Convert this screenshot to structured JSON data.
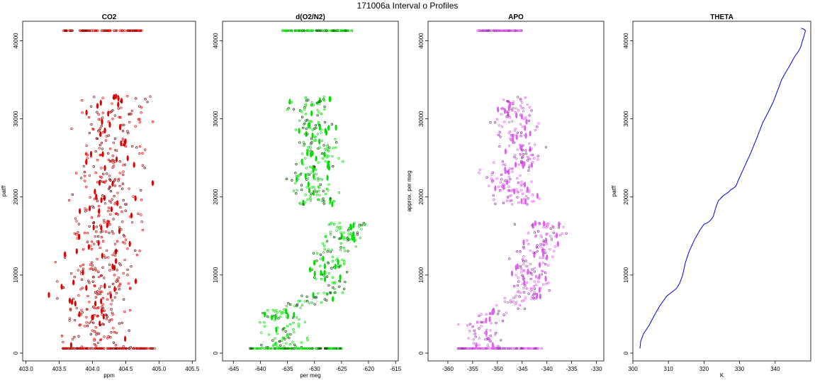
{
  "figure": {
    "title": "171006a   Interval o Profiles"
  },
  "panels": [
    {
      "id": "co2",
      "title": "CO2",
      "xlabel": "ppm",
      "ylabel": "patff",
      "xlim": [
        402.95,
        405.55
      ],
      "ylim": [
        -1000,
        42500
      ],
      "xticks": [
        "403.0",
        "403.5",
        "404.0",
        "404.5",
        "405.0",
        "405.5"
      ],
      "yticks": [
        "0",
        "10000",
        "20000",
        "30000",
        "40000"
      ],
      "color": "#e00000",
      "color_dark": "#7a0000",
      "center_profile": [
        [
          0,
          404.1
        ],
        [
          2000,
          404.1
        ],
        [
          4000,
          404.05
        ],
        [
          6000,
          404.1
        ],
        [
          8000,
          404.05
        ],
        [
          10000,
          404.15
        ],
        [
          12000,
          404.1
        ],
        [
          14000,
          404.2
        ],
        [
          16000,
          404.2
        ],
        [
          18000,
          404.25
        ],
        [
          20000,
          404.25
        ],
        [
          22000,
          404.25
        ],
        [
          24000,
          404.3
        ],
        [
          26000,
          404.35
        ],
        [
          28000,
          404.3
        ],
        [
          30000,
          404.3
        ],
        [
          32500,
          404.4
        ]
      ],
      "spread": 0.45,
      "bottom_band": [
        403.55,
        404.95
      ],
      "top_band": [
        403.55,
        404.75
      ]
    },
    {
      "id": "o2n2",
      "title": "d(O2/N2)",
      "xlabel": "per meg",
      "ylabel": "",
      "xlim": [
        -647,
        -614.5
      ],
      "ylim": [
        -1000,
        42500
      ],
      "xticks": [
        "-645",
        "-640",
        "-635",
        "-630",
        "-625",
        "-620",
        "-615"
      ],
      "yticks": [
        "0",
        "10000",
        "20000",
        "30000",
        "40000"
      ],
      "color": "#00e000",
      "color_dark": "#004d00",
      "center_profile": [
        [
          0,
          -636
        ],
        [
          2000,
          -635
        ],
        [
          4000,
          -637
        ],
        [
          5500,
          -635
        ],
        [
          8000,
          -626
        ],
        [
          10000,
          -628
        ],
        [
          12000,
          -627
        ],
        [
          14000,
          -626
        ],
        [
          16000,
          -624
        ],
        [
          19000,
          -629
        ],
        [
          21000,
          -630
        ],
        [
          23000,
          -632
        ],
        [
          25000,
          -628
        ],
        [
          27000,
          -630
        ],
        [
          29000,
          -630
        ],
        [
          31000,
          -631
        ],
        [
          32500,
          -631
        ]
      ],
      "spread": 3.2,
      "bottom_band": [
        -642,
        -625
      ],
      "top_band": [
        -636,
        -623
      ]
    },
    {
      "id": "apo",
      "title": "APO",
      "xlabel": "",
      "ylabel": "approx. per meg",
      "xlim": [
        -364,
        -328.5
      ],
      "ylim": [
        -1000,
        42500
      ],
      "xticks": [
        "-360",
        "-355",
        "-350",
        "-345",
        "-340",
        "-335",
        "-330"
      ],
      "yticks": [
        "0",
        "10000",
        "20000",
        "30000",
        "40000"
      ],
      "color": "#e060f0",
      "color_dark": "#9a30b0",
      "center_profile": [
        [
          0,
          -353
        ],
        [
          2000,
          -352
        ],
        [
          4000,
          -354
        ],
        [
          5500,
          -350
        ],
        [
          8000,
          -342
        ],
        [
          10000,
          -344
        ],
        [
          12000,
          -343
        ],
        [
          14000,
          -341
        ],
        [
          16000,
          -340
        ],
        [
          19000,
          -345
        ],
        [
          21000,
          -347
        ],
        [
          23000,
          -349
        ],
        [
          25000,
          -344
        ],
        [
          27000,
          -346
        ],
        [
          29000,
          -346
        ],
        [
          31000,
          -347
        ],
        [
          32500,
          -346
        ]
      ],
      "spread": 3.5,
      "bottom_band": [
        -358,
        -341
      ],
      "top_band": [
        -354,
        -345
      ]
    },
    {
      "id": "theta",
      "title": "THETA",
      "xlabel": "K",
      "ylabel": "patff",
      "xlim": [
        300,
        350
      ],
      "ylim": [
        -1000,
        42500
      ],
      "xticks": [
        "300",
        "310",
        "320",
        "330",
        "340"
      ],
      "yticks": [
        "0",
        "10000",
        "20000",
        "30000",
        "40000"
      ],
      "color": "#0000e0",
      "line": [
        [
          302.0,
          600
        ],
        [
          302.2,
          1500
        ],
        [
          303.0,
          2500
        ],
        [
          304.5,
          3500
        ],
        [
          306.0,
          4800
        ],
        [
          307.5,
          6000
        ],
        [
          309.5,
          7300
        ],
        [
          311.5,
          8000
        ],
        [
          312.3,
          8300
        ],
        [
          313.2,
          9000
        ],
        [
          314.0,
          10000
        ],
        [
          314.7,
          11500
        ],
        [
          315.8,
          13000
        ],
        [
          317.3,
          14500
        ],
        [
          318.9,
          15800
        ],
        [
          320.0,
          16500
        ],
        [
          321.0,
          16700
        ],
        [
          321.8,
          17000
        ],
        [
          322.6,
          17500
        ],
        [
          323.2,
          18500
        ],
        [
          324.0,
          19500
        ],
        [
          325.5,
          20200
        ],
        [
          326.8,
          20600
        ],
        [
          327.5,
          20900
        ],
        [
          328.2,
          21100
        ],
        [
          329.0,
          21400
        ],
        [
          329.5,
          22000
        ],
        [
          330.2,
          22700
        ],
        [
          331.5,
          24000
        ],
        [
          333.0,
          25500
        ],
        [
          334.8,
          27500
        ],
        [
          336.5,
          29500
        ],
        [
          338.2,
          31000
        ],
        [
          339.5,
          32200
        ],
        [
          340.3,
          33200
        ],
        [
          341.0,
          34000
        ],
        [
          341.8,
          35000
        ],
        [
          343.0,
          36000
        ],
        [
          344.3,
          37000
        ],
        [
          345.5,
          38000
        ],
        [
          346.5,
          38600
        ],
        [
          347.2,
          39200
        ],
        [
          347.6,
          39900
        ],
        [
          348.1,
          40600
        ],
        [
          348.5,
          41300
        ],
        [
          348.0,
          41500
        ],
        [
          347.3,
          41600
        ]
      ]
    }
  ],
  "chart_data": [
    {
      "type": "scatter",
      "title": "CO2",
      "xlabel": "ppm",
      "ylabel": "patff",
      "xlim": [
        402.95,
        405.55
      ],
      "ylim": [
        -1000,
        42500
      ],
      "x_ticks": [
        403.0,
        403.5,
        404.0,
        404.5,
        405.0,
        405.5
      ],
      "y_ticks": [
        0,
        10000,
        20000,
        30000,
        40000
      ],
      "series": [
        {
          "values_summary": "Samples between ~600 and ~32800 patff, CO2 mostly 403.6–404.8 ppm, clustered near 404.0–404.5; dense horizontal bands at ~600 and ~41300 patff"
        }
      ]
    },
    {
      "type": "scatter",
      "title": "d(O2/N2)",
      "xlabel": "per meg",
      "ylabel": "",
      "xlim": [
        -647,
        -614.5
      ],
      "ylim": [
        -1000,
        42500
      ],
      "x_ticks": [
        -645,
        -640,
        -635,
        -630,
        -625,
        -620,
        -615
      ],
      "y_ticks": [
        0,
        10000,
        20000,
        30000,
        40000
      ],
      "series": [
        {
          "values_summary": "Low altitudes (<5500) near -640 to -632; 6000–16500 near -628 to -618; 19000–33000 near -635 to -624; bands at ~600 and ~41300"
        }
      ]
    },
    {
      "type": "scatter",
      "title": "APO",
      "xlabel": "",
      "ylabel": "approx. per meg",
      "xlim": [
        -364,
        -328.5
      ],
      "ylim": [
        -1000,
        42500
      ],
      "x_ticks": [
        -360,
        -355,
        -350,
        -345,
        -340,
        -335,
        -330
      ],
      "y_ticks": [
        0,
        10000,
        20000,
        30000,
        40000
      ],
      "series": [
        {
          "values_summary": "Low altitudes near -358 to -348; 6000–16500 near -347 to -333; 19000–33000 near -352 to -340; bands at ~600 and ~41300"
        }
      ]
    },
    {
      "type": "line",
      "title": "THETA",
      "xlabel": "K",
      "ylabel": "patff",
      "xlim": [
        300,
        350
      ],
      "ylim": [
        -1000,
        42500
      ],
      "x_ticks": [
        300,
        310,
        320,
        330,
        340
      ],
      "y_ticks": [
        0,
        10000,
        20000,
        30000,
        40000
      ],
      "series": [
        {
          "values_summary": "Potential temperature rising monotonically from ~302 K at ~600 patff to ~348 K at ~41300 patff"
        }
      ]
    }
  ]
}
